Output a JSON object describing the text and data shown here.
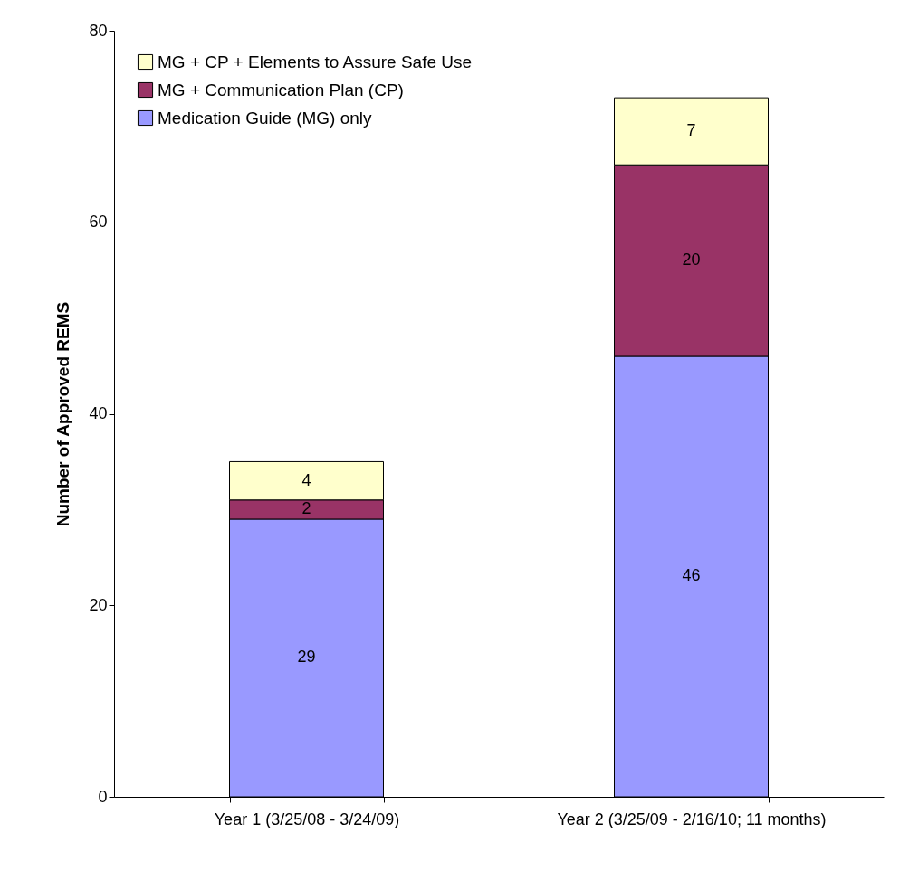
{
  "chart_data": {
    "type": "bar",
    "stacked": true,
    "ylabel": "Number of Approved REMS",
    "categories": [
      "Year 1 (3/25/08 - 3/24/09)",
      "Year 2 (3/25/09 - 2/16/10; 11 months)"
    ],
    "series": [
      {
        "name": "Medication Guide (MG) only",
        "color": "#9999ff",
        "values": [
          29,
          46
        ]
      },
      {
        "name": "MG + Communication Plan (CP)",
        "color": "#993366",
        "values": [
          2,
          20
        ]
      },
      {
        "name": "MG + CP + Elements to Assure Safe Use",
        "color": "#ffffcc",
        "values": [
          4,
          7
        ]
      }
    ],
    "ylim": [
      0,
      80
    ],
    "yticks": [
      0,
      20,
      40,
      60,
      80
    ],
    "grid": false,
    "legend": "top left",
    "data_labels": true
  }
}
